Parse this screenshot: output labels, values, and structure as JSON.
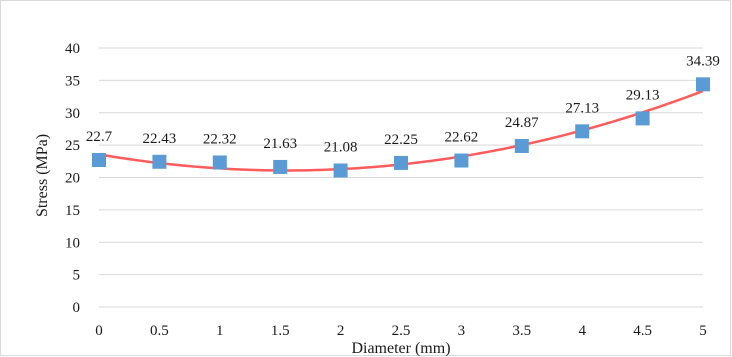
{
  "chart_data": {
    "type": "scatter",
    "x": [
      0,
      0.5,
      1,
      1.5,
      2,
      2.5,
      3,
      3.5,
      4,
      4.5,
      5
    ],
    "x_tick_labels": [
      "0",
      "0.5",
      "1",
      "1.5",
      "2",
      "2.5",
      "3",
      "3.5",
      "4",
      "4.5",
      "5"
    ],
    "series": [
      {
        "values": [
          22.7,
          22.43,
          22.32,
          21.63,
          21.08,
          22.25,
          22.62,
          24.87,
          27.13,
          29.13,
          34.39
        ],
        "data_labels": [
          "22.7",
          "22.43",
          "22.32",
          "21.63",
          "21.08",
          "22.25",
          "22.62",
          "24.87",
          "27.13",
          "29.13",
          "34.39"
        ],
        "marker": "square",
        "color": "#5b9bd5"
      }
    ],
    "trendline": {
      "type": "polynomial",
      "degree": 2,
      "color": "#ff5b5b"
    },
    "xlabel": "Diameter (mm)",
    "ylabel": "Stress  (MPa)",
    "xlim": [
      0,
      5
    ],
    "ylim": [
      0,
      40
    ],
    "y_ticks": [
      0,
      5,
      10,
      15,
      20,
      25,
      30,
      35,
      40
    ],
    "grid": true,
    "legend": "none"
  }
}
